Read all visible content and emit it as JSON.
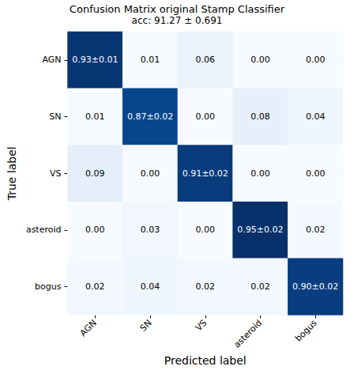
{
  "chart_data": {
    "type": "heatmap",
    "title": "Confusion Matrix original Stamp Classifier",
    "subtitle": "acc: 91.27 ± 0.691",
    "x_label": "Predicted label",
    "y_label": "True label",
    "x_categories": [
      "AGN",
      "SN",
      "VS",
      "asteroid",
      "bogus"
    ],
    "y_categories": [
      "AGN",
      "SN",
      "VS",
      "asteroid",
      "bogus"
    ],
    "cells": [
      [
        0.93,
        0.01,
        0.06,
        0.0,
        0.0
      ],
      [
        0.01,
        0.87,
        0.0,
        0.08,
        0.04
      ],
      [
        0.09,
        0.0,
        0.91,
        0.0,
        0.0
      ],
      [
        0.0,
        0.03,
        0.0,
        0.95,
        0.02
      ],
      [
        0.02,
        0.04,
        0.02,
        0.02,
        0.9
      ]
    ],
    "errors": [
      [
        0.01,
        null,
        null,
        null,
        null
      ],
      [
        null,
        0.02,
        null,
        null,
        null
      ],
      [
        null,
        null,
        0.02,
        null,
        null
      ],
      [
        null,
        null,
        null,
        0.02,
        null
      ],
      [
        null,
        null,
        null,
        null,
        0.02
      ]
    ],
    "value_labels": [
      [
        "0.93±0.01",
        "0.01",
        "0.06",
        "0.00",
        "0.00"
      ],
      [
        "0.01",
        "0.87±0.02",
        "0.00",
        "0.08",
        "0.04"
      ],
      [
        "0.09",
        "0.00",
        "0.91±0.02",
        "0.00",
        "0.00"
      ],
      [
        "0.00",
        "0.03",
        "0.00",
        "0.95±0.02",
        "0.02"
      ],
      [
        "0.02",
        "0.04",
        "0.02",
        "0.02",
        "0.90±0.02"
      ]
    ],
    "data_labels": true,
    "color": "Blues"
  }
}
